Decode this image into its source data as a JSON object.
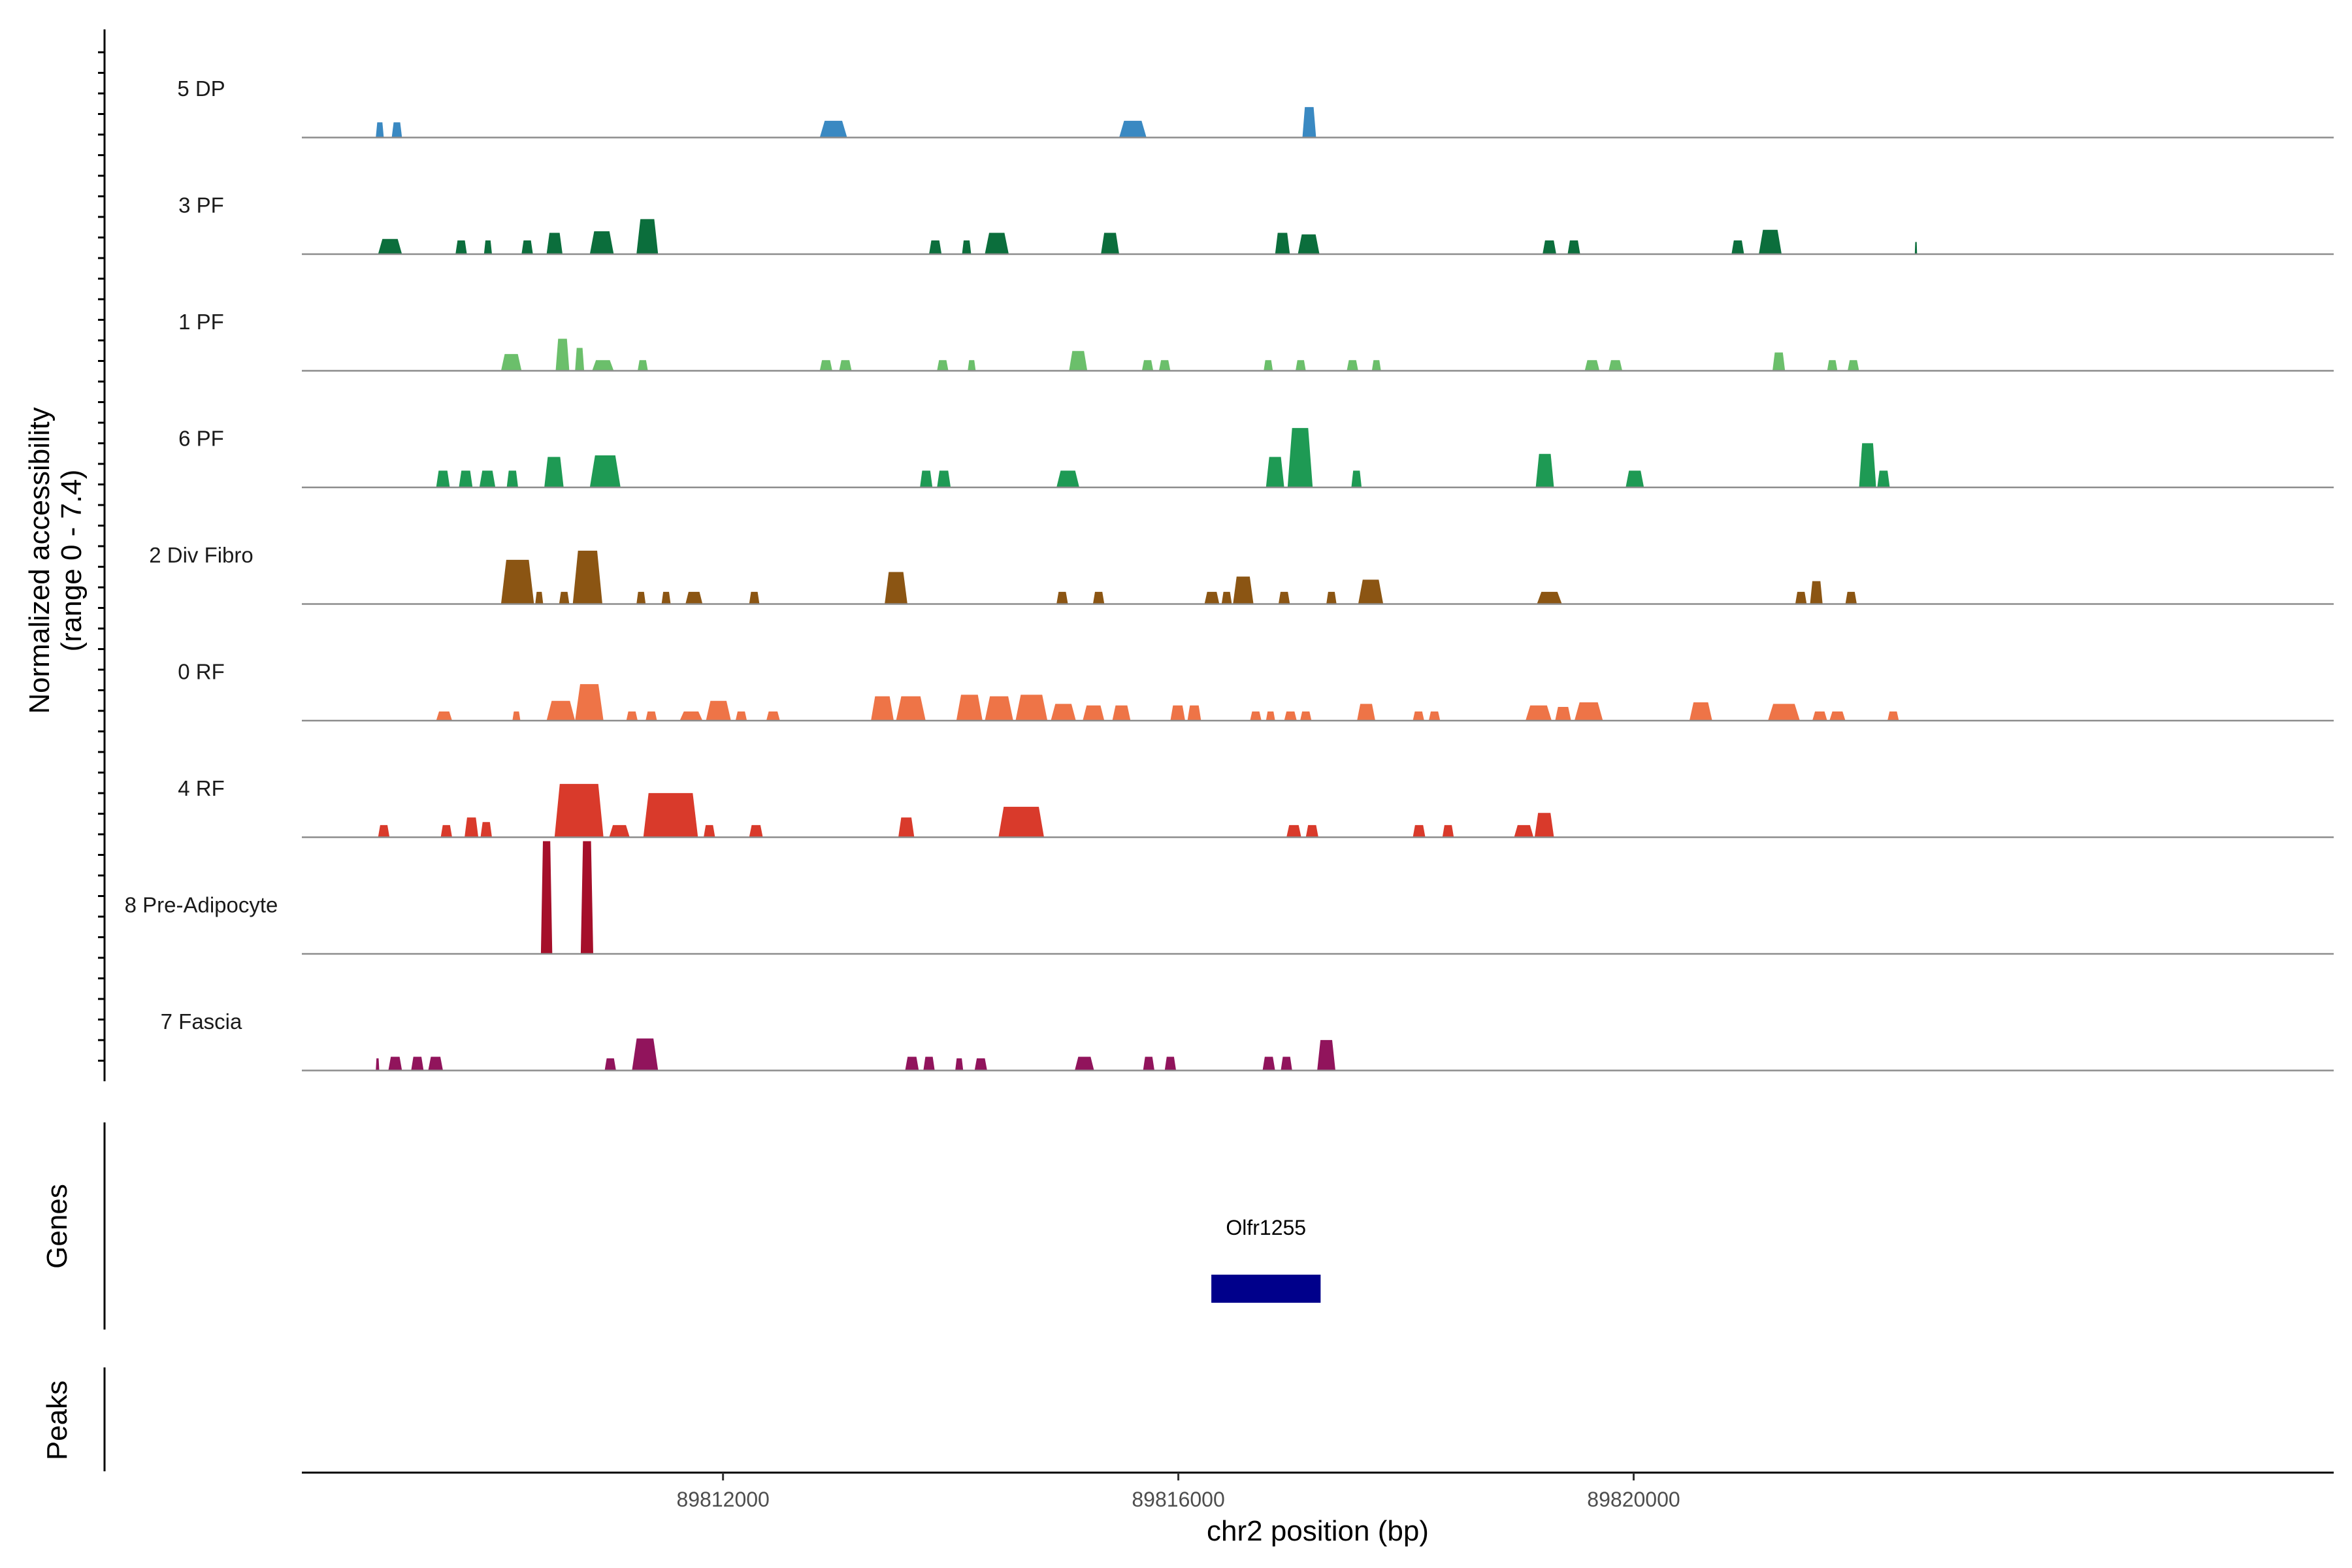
{
  "chart_data": {
    "type": "area",
    "x_axis": {
      "label": "chr2 position (bp)",
      "range": [
        89808300,
        89826150
      ],
      "ticks": [
        89812000,
        89816000,
        89820000
      ],
      "tick_labels": [
        "89812000",
        "89816000",
        "89820000"
      ]
    },
    "y_axis": {
      "title_line1": "Normalized accessibility",
      "title_line2": "(range 0 - 7.4)",
      "range": [
        0,
        7.4
      ]
    },
    "series": [
      {
        "name": "5 DP",
        "color": "#3A89C2",
        "peaks": [
          [
            89808950,
            89809020,
            1.0
          ],
          [
            89809090,
            89809180,
            1.0
          ],
          [
            89812850,
            89813090,
            1.1
          ],
          [
            89815480,
            89815720,
            1.1
          ],
          [
            89817090,
            89817210,
            2.0
          ]
        ]
      },
      {
        "name": "3 PF",
        "color": "#0B6E3C",
        "peaks": [
          [
            89808970,
            89809180,
            1.0
          ],
          [
            89809650,
            89809750,
            0.9
          ],
          [
            89809900,
            89809970,
            0.9
          ],
          [
            89810230,
            89810330,
            0.9
          ],
          [
            89810450,
            89810590,
            1.4
          ],
          [
            89810830,
            89811040,
            1.5
          ],
          [
            89811240,
            89811430,
            2.3
          ],
          [
            89813810,
            89813920,
            0.9
          ],
          [
            89814100,
            89814180,
            0.9
          ],
          [
            89814300,
            89814510,
            1.4
          ],
          [
            89815320,
            89815480,
            1.4
          ],
          [
            89816850,
            89816980,
            1.4
          ],
          [
            89817050,
            89817240,
            1.3
          ],
          [
            89819200,
            89819320,
            0.9
          ],
          [
            89819420,
            89819530,
            0.9
          ],
          [
            89820860,
            89820970,
            0.9
          ],
          [
            89821100,
            89821300,
            1.6
          ],
          [
            89822470,
            89822490,
            0.8
          ]
        ]
      },
      {
        "name": "1 PF",
        "color": "#6BBF6B",
        "peaks": [
          [
            89810050,
            89810230,
            1.1
          ],
          [
            89810530,
            89810650,
            2.1
          ],
          [
            89810700,
            89810780,
            1.5
          ],
          [
            89810850,
            89811040,
            0.7
          ],
          [
            89811250,
            89811340,
            0.7
          ],
          [
            89812850,
            89812960,
            0.7
          ],
          [
            89813020,
            89813130,
            0.7
          ],
          [
            89813880,
            89813980,
            0.7
          ],
          [
            89814150,
            89814220,
            0.7
          ],
          [
            89815040,
            89815200,
            1.3
          ],
          [
            89815680,
            89815780,
            0.7
          ],
          [
            89815830,
            89815930,
            0.7
          ],
          [
            89816750,
            89816830,
            0.7
          ],
          [
            89817030,
            89817120,
            0.7
          ],
          [
            89817480,
            89817580,
            0.7
          ],
          [
            89817700,
            89817780,
            0.7
          ],
          [
            89819570,
            89819700,
            0.7
          ],
          [
            89819780,
            89819900,
            0.7
          ],
          [
            89821220,
            89821330,
            1.2
          ],
          [
            89821700,
            89821790,
            0.7
          ],
          [
            89821880,
            89821980,
            0.7
          ]
        ]
      },
      {
        "name": "6 PF",
        "color": "#1E9A54",
        "peaks": [
          [
            89809480,
            89809600,
            1.1
          ],
          [
            89809680,
            89809800,
            1.1
          ],
          [
            89809860,
            89810000,
            1.1
          ],
          [
            89810100,
            89810200,
            1.1
          ],
          [
            89810430,
            89810600,
            2.0
          ],
          [
            89810830,
            89811100,
            2.1
          ],
          [
            89813730,
            89813840,
            1.1
          ],
          [
            89813880,
            89814000,
            1.1
          ],
          [
            89814930,
            89815130,
            1.1
          ],
          [
            89816770,
            89816930,
            2.0
          ],
          [
            89816960,
            89817180,
            3.9
          ],
          [
            89817520,
            89817610,
            1.1
          ],
          [
            89819140,
            89819300,
            2.2
          ],
          [
            89819930,
            89820090,
            1.1
          ],
          [
            89821980,
            89822130,
            2.9
          ],
          [
            89822140,
            89822250,
            1.1
          ]
        ]
      },
      {
        "name": "2 Div Fibro",
        "color": "#8B5513",
        "peaks": [
          [
            89810050,
            89810340,
            2.9
          ],
          [
            89810350,
            89810420,
            0.8
          ],
          [
            89810560,
            89810650,
            0.8
          ],
          [
            89810680,
            89810940,
            3.5
          ],
          [
            89811240,
            89811320,
            0.8
          ],
          [
            89811460,
            89811540,
            0.8
          ],
          [
            89811670,
            89811820,
            0.8
          ],
          [
            89812230,
            89812320,
            0.8
          ],
          [
            89813420,
            89813620,
            2.1
          ],
          [
            89814930,
            89815030,
            0.8
          ],
          [
            89815250,
            89815350,
            0.8
          ],
          [
            89816230,
            89816360,
            0.8
          ],
          [
            89816380,
            89816470,
            0.8
          ],
          [
            89816480,
            89816660,
            1.8
          ],
          [
            89816880,
            89816980,
            0.8
          ],
          [
            89817300,
            89817390,
            0.8
          ],
          [
            89817580,
            89817800,
            1.6
          ],
          [
            89819150,
            89819370,
            0.8
          ],
          [
            89821420,
            89821520,
            0.8
          ],
          [
            89821550,
            89821660,
            1.5
          ],
          [
            89821860,
            89821960,
            0.8
          ]
        ]
      },
      {
        "name": "0 RF",
        "color": "#EE7447",
        "peaks": [
          [
            89809480,
            89809620,
            0.6
          ],
          [
            89810150,
            89810220,
            0.6
          ],
          [
            89810450,
            89810700,
            1.3
          ],
          [
            89810700,
            89810950,
            2.4
          ],
          [
            89811150,
            89811250,
            0.6
          ],
          [
            89811320,
            89811420,
            0.6
          ],
          [
            89811620,
            89811820,
            0.6
          ],
          [
            89811850,
            89812070,
            1.3
          ],
          [
            89812110,
            89812210,
            0.6
          ],
          [
            89812380,
            89812500,
            0.6
          ],
          [
            89813300,
            89813500,
            1.6
          ],
          [
            89813520,
            89813780,
            1.6
          ],
          [
            89814050,
            89814280,
            1.7
          ],
          [
            89814300,
            89814550,
            1.6
          ],
          [
            89814570,
            89814850,
            1.7
          ],
          [
            89814880,
            89815100,
            1.1
          ],
          [
            89815160,
            89815350,
            1.0
          ],
          [
            89815420,
            89815580,
            1.0
          ],
          [
            89815930,
            89816060,
            1.0
          ],
          [
            89816080,
            89816200,
            1.0
          ],
          [
            89816630,
            89816730,
            0.6
          ],
          [
            89816770,
            89816850,
            0.6
          ],
          [
            89816930,
            89817040,
            0.6
          ],
          [
            89817070,
            89817170,
            0.6
          ],
          [
            89817570,
            89817730,
            1.1
          ],
          [
            89818060,
            89818160,
            0.6
          ],
          [
            89818200,
            89818300,
            0.6
          ],
          [
            89819050,
            89819280,
            1.0
          ],
          [
            89819310,
            89819450,
            0.9
          ],
          [
            89819480,
            89819730,
            1.2
          ],
          [
            89820490,
            89820690,
            1.2
          ],
          [
            89821180,
            89821460,
            1.1
          ],
          [
            89821570,
            89821700,
            0.6
          ],
          [
            89821720,
            89821860,
            0.6
          ],
          [
            89822230,
            89822330,
            0.6
          ]
        ]
      },
      {
        "name": "4 RF",
        "color": "#D93A2B",
        "peaks": [
          [
            89808970,
            89809070,
            0.8
          ],
          [
            89809520,
            89809620,
            0.8
          ],
          [
            89809730,
            89809850,
            1.3
          ],
          [
            89809870,
            89809970,
            1.0
          ],
          [
            89810520,
            89810950,
            3.5
          ],
          [
            89811000,
            89811180,
            0.8
          ],
          [
            89811300,
            89811780,
            2.9
          ],
          [
            89811830,
            89811930,
            0.8
          ],
          [
            89812230,
            89812350,
            0.8
          ],
          [
            89813540,
            89813680,
            1.3
          ],
          [
            89814420,
            89814820,
            2.0
          ],
          [
            89816950,
            89817080,
            0.8
          ],
          [
            89817120,
            89817230,
            0.8
          ],
          [
            89818060,
            89818170,
            0.8
          ],
          [
            89818320,
            89818420,
            0.8
          ],
          [
            89818950,
            89819120,
            0.8
          ],
          [
            89819130,
            89819300,
            1.6
          ]
        ]
      },
      {
        "name": "8 Pre-Adipocyte",
        "color": "#A50F2A",
        "peaks": [
          [
            89810400,
            89810500,
            7.4
          ],
          [
            89810750,
            89810860,
            7.4
          ]
        ]
      },
      {
        "name": "7 Fascia",
        "color": "#91145C",
        "peaks": [
          [
            89808950,
            89808980,
            0.8
          ],
          [
            89809060,
            89809180,
            0.9
          ],
          [
            89809260,
            89809370,
            0.9
          ],
          [
            89809410,
            89809540,
            0.9
          ],
          [
            89810960,
            89811060,
            0.8
          ],
          [
            89811200,
            89811430,
            2.1
          ],
          [
            89813600,
            89813720,
            0.9
          ],
          [
            89813760,
            89813860,
            0.9
          ],
          [
            89814040,
            89814110,
            0.8
          ],
          [
            89814210,
            89814320,
            0.8
          ],
          [
            89815090,
            89815260,
            0.9
          ],
          [
            89815690,
            89815790,
            0.9
          ],
          [
            89815880,
            89815980,
            0.9
          ],
          [
            89816740,
            89816850,
            0.9
          ],
          [
            89816900,
            89817000,
            0.9
          ],
          [
            89817220,
            89817380,
            2.0
          ]
        ]
      }
    ],
    "genes": {
      "title": "Genes",
      "items": [
        {
          "name": "Olfr1255",
          "start": 89816290,
          "end": 89817250,
          "color": "#00008B"
        }
      ]
    },
    "peaks_track": {
      "title": "Peaks",
      "items": []
    }
  }
}
